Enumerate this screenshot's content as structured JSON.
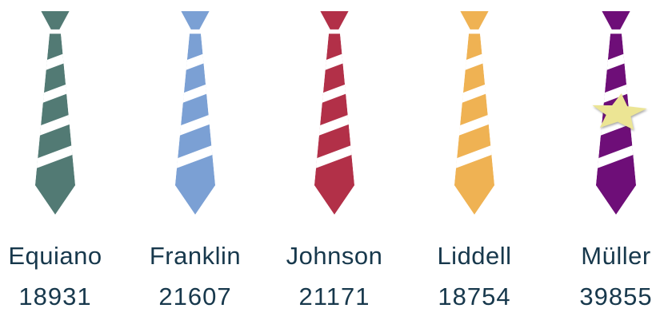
{
  "chart_data": {
    "type": "pictogram",
    "icon": "striped-necktie",
    "title": "",
    "categories": [
      "Equiano",
      "Franklin",
      "Johnson",
      "Liddell",
      "Müller"
    ],
    "values": [
      18931,
      21607,
      21171,
      18754,
      39855
    ],
    "series": [
      {
        "name": "Equiano",
        "value": "18931",
        "color": "#527a74",
        "star": false
      },
      {
        "name": "Franklin",
        "value": "21607",
        "color": "#7ba0d4",
        "star": false
      },
      {
        "name": "Johnson",
        "value": "21171",
        "color": "#b23048",
        "star": false
      },
      {
        "name": "Liddell",
        "value": "18754",
        "color": "#efb253",
        "star": false
      },
      {
        "name": "Müller",
        "value": "39855",
        "color": "#6e0e78",
        "star": true
      }
    ],
    "stripe_color": "#ffffff",
    "star_color": "#ece594",
    "text_color": "#17384c",
    "background_color": "#ffffff",
    "legend_position": "none",
    "grid": false
  }
}
